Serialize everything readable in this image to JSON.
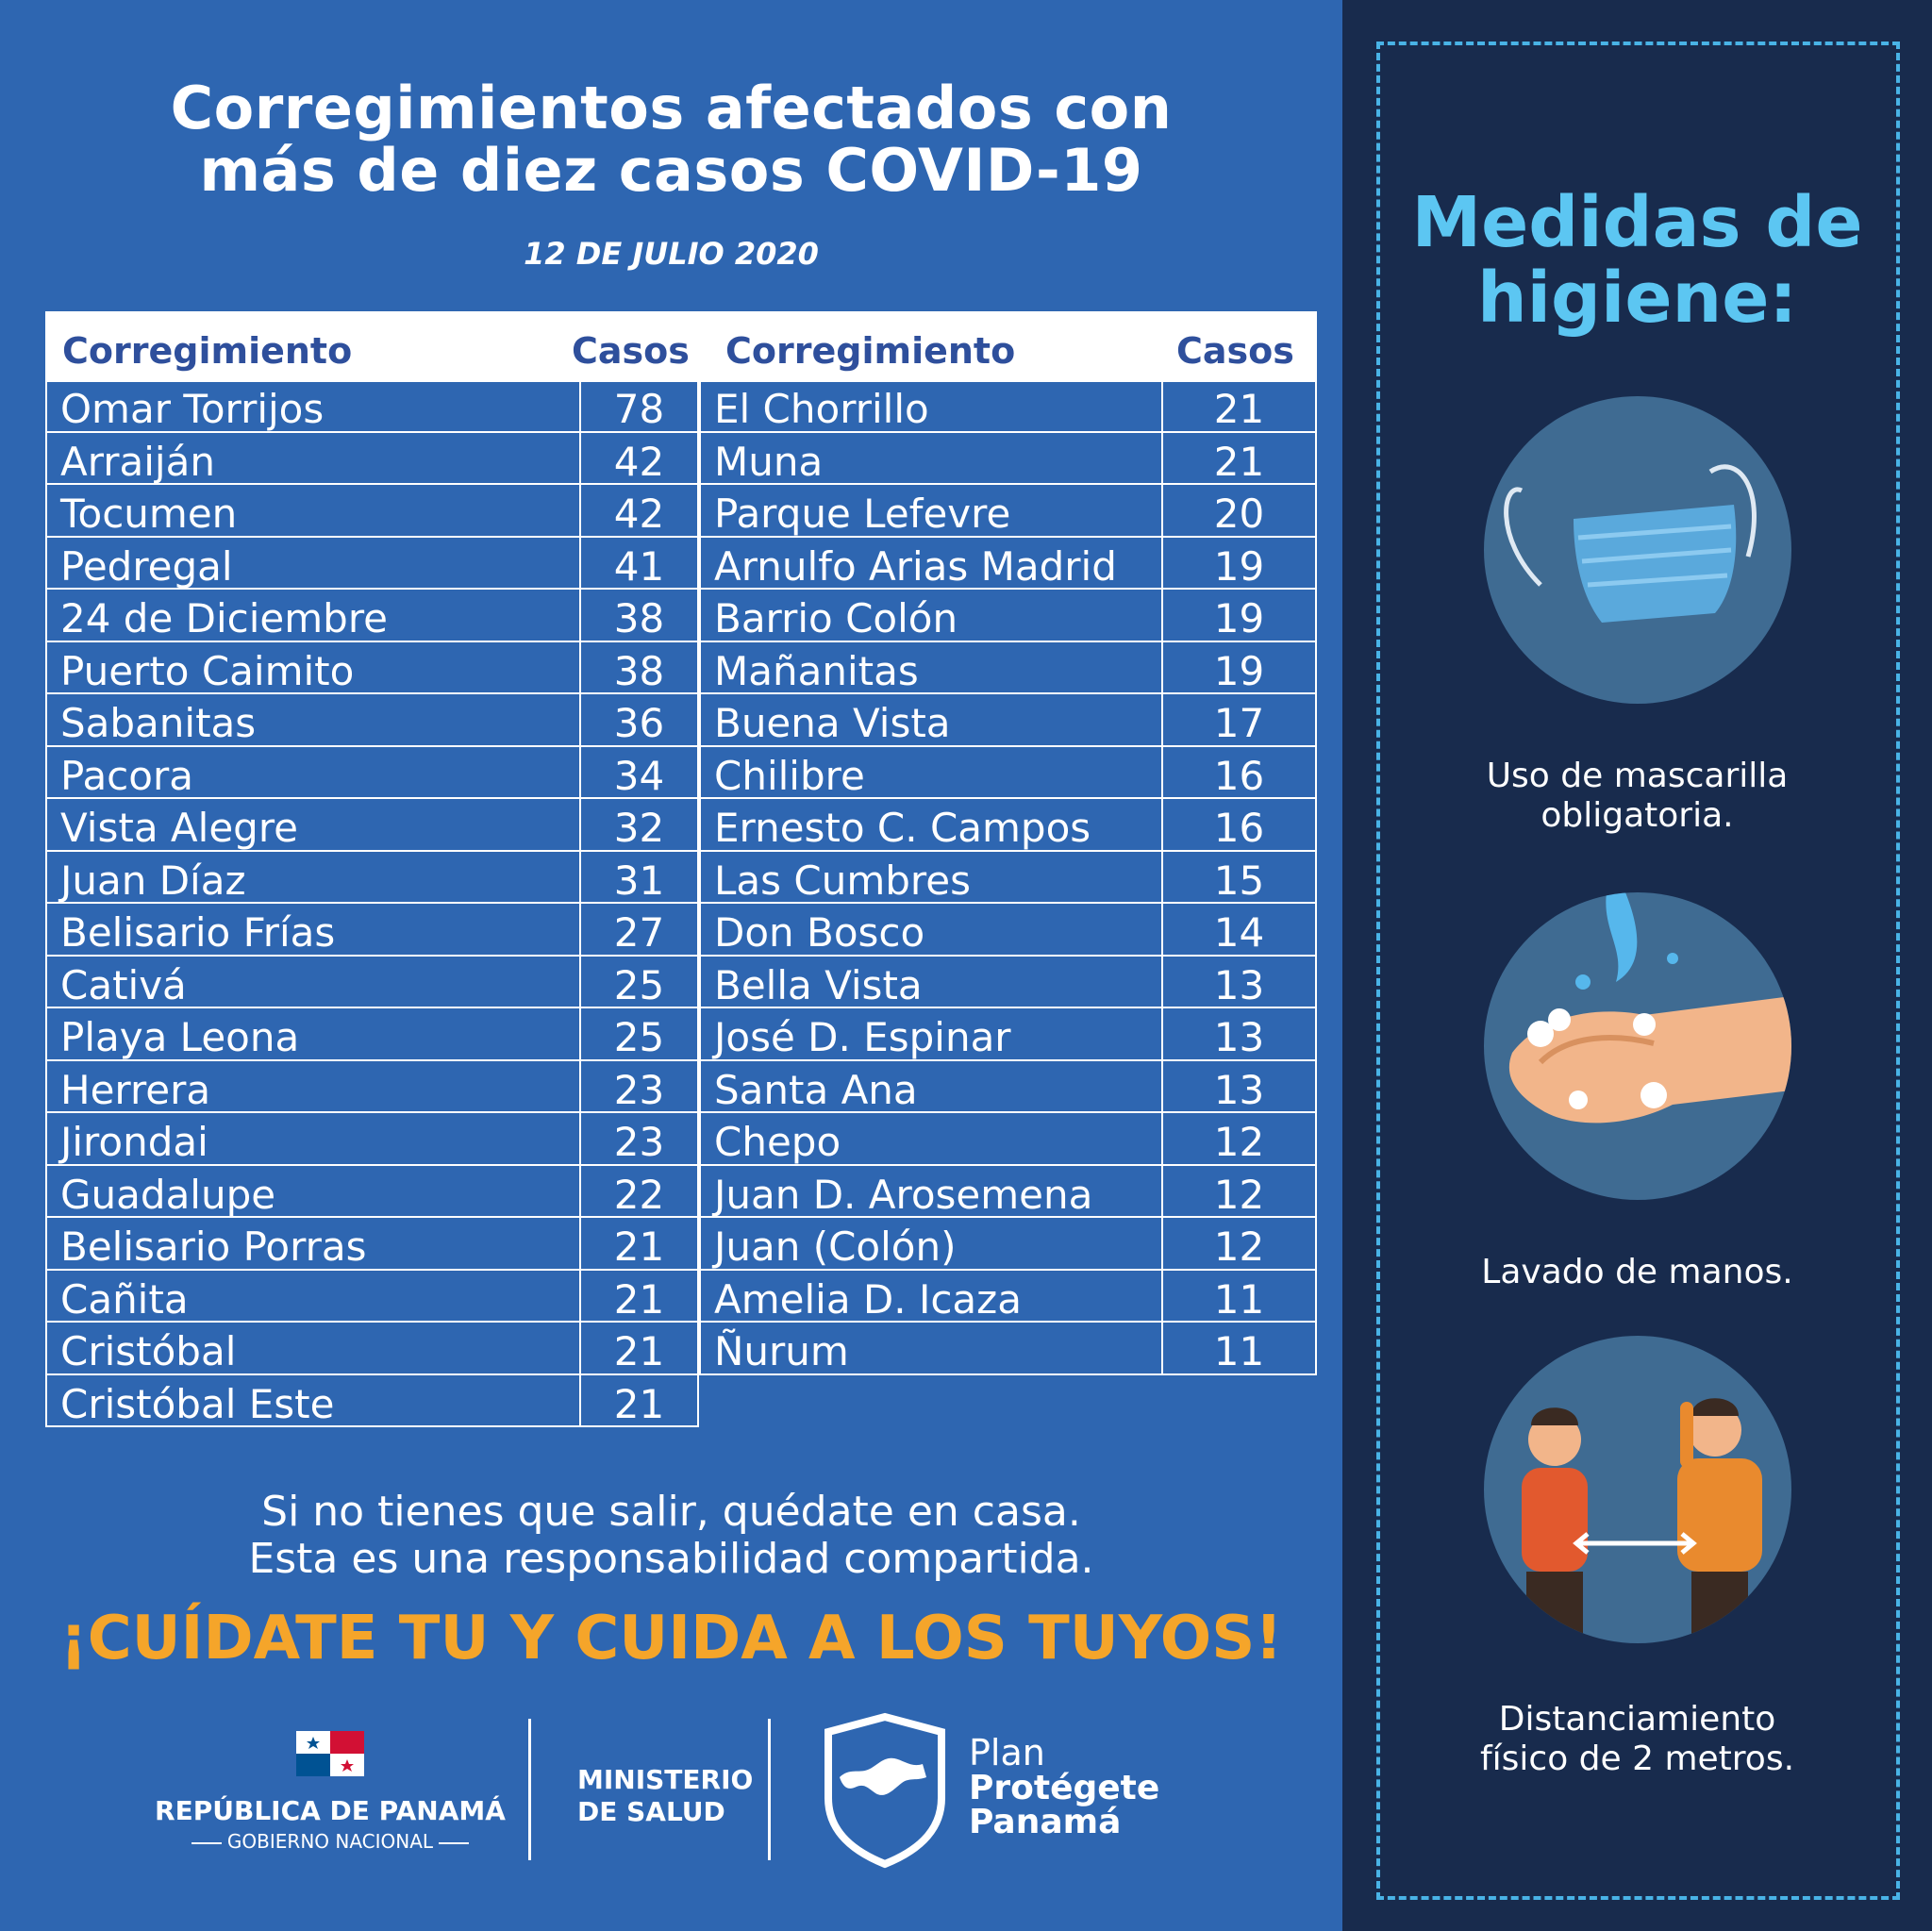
{
  "header": {
    "title_line1": "Corregimientos afectados con",
    "title_line2": "más de diez casos COVID-19",
    "date": "12 DE JULIO 2020"
  },
  "table": {
    "col_name": "Corregimiento",
    "col_cases": "Casos",
    "left": [
      {
        "name": "Omar Torrijos",
        "cases": "78"
      },
      {
        "name": "Arraiján",
        "cases": "42"
      },
      {
        "name": "Tocumen",
        "cases": "42"
      },
      {
        "name": "Pedregal",
        "cases": "41"
      },
      {
        "name": "24 de Diciembre",
        "cases": "38"
      },
      {
        "name": "Puerto Caimito",
        "cases": "38"
      },
      {
        "name": "Sabanitas",
        "cases": "36"
      },
      {
        "name": "Pacora",
        "cases": "34"
      },
      {
        "name": "Vista Alegre",
        "cases": "32"
      },
      {
        "name": "Juan Díaz",
        "cases": "31"
      },
      {
        "name": "Belisario Frías",
        "cases": "27"
      },
      {
        "name": "Cativá",
        "cases": "25"
      },
      {
        "name": "Playa Leona",
        "cases": "25"
      },
      {
        "name": "Herrera",
        "cases": "23"
      },
      {
        "name": "Jirondai",
        "cases": "23"
      },
      {
        "name": "Guadalupe",
        "cases": "22"
      },
      {
        "name": "Belisario Porras",
        "cases": "21"
      },
      {
        "name": "Cañita",
        "cases": "21"
      },
      {
        "name": "Cristóbal",
        "cases": "21"
      },
      {
        "name": "Cristóbal Este",
        "cases": "21"
      }
    ],
    "right": [
      {
        "name": "El Chorrillo",
        "cases": "21"
      },
      {
        "name": "Muna",
        "cases": "21"
      },
      {
        "name": "Parque Lefevre",
        "cases": "20"
      },
      {
        "name": "Arnulfo Arias Madrid",
        "cases": "19"
      },
      {
        "name": "Barrio Colón",
        "cases": "19"
      },
      {
        "name": "Mañanitas",
        "cases": "19"
      },
      {
        "name": "Buena Vista",
        "cases": "17"
      },
      {
        "name": "Chilibre",
        "cases": "16"
      },
      {
        "name": "Ernesto C. Campos",
        "cases": "16"
      },
      {
        "name": "Las Cumbres",
        "cases": "15"
      },
      {
        "name": "Don Bosco",
        "cases": "14"
      },
      {
        "name": "Bella Vista",
        "cases": "13"
      },
      {
        "name": "José D. Espinar",
        "cases": "13"
      },
      {
        "name": "Santa Ana",
        "cases": "13"
      },
      {
        "name": "Chepo",
        "cases": "12"
      },
      {
        "name": "Juan D. Arosemena",
        "cases": "12"
      },
      {
        "name": "Juan (Colón)",
        "cases": "12"
      },
      {
        "name": "Amelia D. Icaza",
        "cases": "11"
      },
      {
        "name": "Ñurum",
        "cases": "11"
      }
    ]
  },
  "message": {
    "line1": "Si no tienes que salir, quédate en casa.",
    "line2": "Esta es una responsabilidad compartida.",
    "slogan": "¡CUÍDATE TU Y CUIDA A LOS TUYOS!"
  },
  "footer": {
    "rep_line1": "REPÚBLICA DE PANAMÁ",
    "rep_line2": "GOBIERNO NACIONAL",
    "minsa_line1": "MINISTERIO",
    "minsa_line2": "DE SALUD",
    "plan_line1": "Plan",
    "plan_line2": "Protégete",
    "plan_line3": "Panamá"
  },
  "measures": {
    "title_line1": "Medidas de",
    "title_line2": "higiene:",
    "items": [
      {
        "icon": "face-mask-icon",
        "line1": "Uso de mascarilla",
        "line2": "obligatoria."
      },
      {
        "icon": "hand-washing-icon",
        "line1": "Lavado de manos.",
        "line2": ""
      },
      {
        "icon": "social-distance-icon",
        "line1": "Distanciamiento",
        "line2": "físico de 2 metros."
      }
    ]
  },
  "colors": {
    "background": "#2e66b1",
    "sidebar": "#182b4d",
    "accent_blue": "#5cc6f2",
    "slogan_orange": "#f5a52a"
  }
}
